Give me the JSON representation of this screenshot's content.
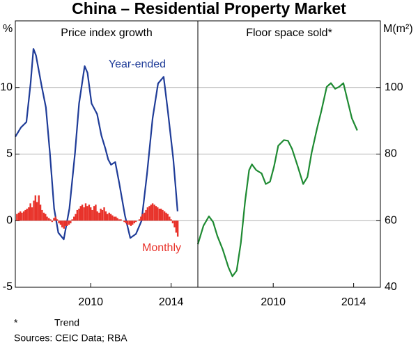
{
  "title": "China – Residential Property Market",
  "footnote": {
    "marker": "*",
    "text": "Trend"
  },
  "sources": "Sources:  CEIC Data; RBA",
  "chart_data": [
    {
      "type": "combo",
      "title": "Price index growth",
      "y_label": "%",
      "xlim": [
        2006.25,
        2015.33
      ],
      "xticks": [
        2010,
        2014
      ],
      "ylim": [
        -5,
        15
      ],
      "yticks": [
        -5,
        0,
        5,
        10
      ],
      "grid": true,
      "axis_side": "left",
      "series": [
        {
          "name": "Year-ended",
          "type": "line",
          "color": "#1f3c98",
          "x": [
            2006.25,
            2006.53,
            2006.8,
            2007.01,
            2007.15,
            2007.28,
            2007.56,
            2007.77,
            2007.97,
            2008.18,
            2008.39,
            2008.66,
            2008.94,
            2009.22,
            2009.42,
            2009.7,
            2009.84,
            2010.04,
            2010.32,
            2010.53,
            2010.73,
            2010.87,
            2011.01,
            2011.22,
            2011.42,
            2011.7,
            2011.97,
            2012.25,
            2012.53,
            2012.8,
            2013.08,
            2013.35,
            2013.63,
            2013.84,
            2014.11,
            2014.32
          ],
          "values": [
            6.3,
            7.0,
            7.4,
            10.3,
            12.9,
            12.4,
            10.1,
            8.5,
            5.1,
            0.9,
            -0.9,
            -1.4,
            0.9,
            5.1,
            8.8,
            11.6,
            11.1,
            8.8,
            8.0,
            6.4,
            5.4,
            4.6,
            4.2,
            4.4,
            2.8,
            0.4,
            -1.3,
            -1.0,
            0.0,
            3.5,
            7.7,
            10.3,
            10.8,
            8.2,
            4.6,
            0.7
          ]
        },
        {
          "name": "Monthly",
          "type": "bar",
          "color": "#e8322a",
          "x": [
            2006.33,
            2006.42,
            2006.5,
            2006.58,
            2006.67,
            2006.75,
            2006.83,
            2006.92,
            2007.0,
            2007.08,
            2007.17,
            2007.25,
            2007.33,
            2007.42,
            2007.5,
            2007.58,
            2007.67,
            2007.75,
            2007.83,
            2007.92,
            2008.0,
            2008.08,
            2008.17,
            2008.25,
            2008.33,
            2008.42,
            2008.5,
            2008.58,
            2008.67,
            2008.75,
            2008.83,
            2008.92,
            2009.0,
            2009.08,
            2009.17,
            2009.25,
            2009.33,
            2009.42,
            2009.5,
            2009.58,
            2009.67,
            2009.75,
            2009.83,
            2009.92,
            2010.0,
            2010.08,
            2010.17,
            2010.25,
            2010.33,
            2010.42,
            2010.5,
            2010.58,
            2010.67,
            2010.75,
            2010.83,
            2010.92,
            2011.0,
            2011.08,
            2011.17,
            2011.25,
            2011.33,
            2011.42,
            2011.5,
            2011.58,
            2011.67,
            2011.75,
            2011.83,
            2011.92,
            2012.0,
            2012.08,
            2012.17,
            2012.25,
            2012.33,
            2012.42,
            2012.5,
            2012.58,
            2012.67,
            2012.75,
            2012.83,
            2012.92,
            2013.0,
            2013.08,
            2013.17,
            2013.25,
            2013.33,
            2013.42,
            2013.5,
            2013.58,
            2013.67,
            2013.75,
            2013.83,
            2013.92,
            2014.0,
            2014.08,
            2014.17,
            2014.25,
            2014.33
          ],
          "values": [
            0.5,
            0.6,
            0.7,
            0.6,
            0.7,
            0.8,
            0.9,
            1.0,
            1.3,
            1.0,
            1.5,
            1.9,
            1.4,
            1.9,
            1.2,
            0.8,
            0.6,
            0.5,
            0.3,
            0.2,
            0.1,
            -0.1,
            0.2,
            0.3,
            0.1,
            -0.2,
            -0.3,
            -0.5,
            -0.6,
            -0.4,
            -0.4,
            -0.3,
            -0.2,
            0.1,
            0.3,
            0.5,
            0.8,
            0.9,
            1.1,
            1.2,
            1.0,
            1.3,
            1.1,
            1.2,
            1.0,
            0.8,
            1.1,
            1.2,
            0.7,
            0.6,
            0.9,
            0.8,
            1.0,
            0.7,
            0.5,
            0.6,
            0.5,
            0.4,
            0.3,
            0.3,
            0.2,
            0.1,
            0.1,
            0.0,
            -0.1,
            -0.2,
            -0.3,
            -0.3,
            -0.4,
            -0.3,
            -0.2,
            -0.1,
            0.0,
            0.1,
            0.3,
            0.5,
            0.6,
            0.8,
            1.0,
            1.1,
            1.2,
            1.3,
            1.2,
            1.1,
            1.0,
            0.9,
            0.9,
            0.8,
            0.7,
            0.6,
            0.5,
            0.3,
            0.1,
            -0.2,
            -0.5,
            -0.9,
            -1.2
          ]
        }
      ]
    },
    {
      "type": "line",
      "title": "Floor space sold*",
      "y_label": "M(m²)",
      "xlim": [
        2006.25,
        2015.33
      ],
      "xticks": [
        2010,
        2014
      ],
      "ylim": [
        40,
        120
      ],
      "yticks": [
        40,
        60,
        80,
        100
      ],
      "grid": true,
      "axis_side": "right",
      "series": [
        {
          "name": "Floor space sold",
          "type": "line",
          "color": "#1e8a32",
          "x": [
            2006.25,
            2006.53,
            2006.8,
            2007.01,
            2007.22,
            2007.49,
            2007.77,
            2007.97,
            2008.18,
            2008.39,
            2008.6,
            2008.8,
            2008.94,
            2009.15,
            2009.42,
            2009.63,
            2009.84,
            2010.04,
            2010.25,
            2010.53,
            2010.73,
            2010.94,
            2011.22,
            2011.49,
            2011.7,
            2011.91,
            2012.18,
            2012.39,
            2012.66,
            2012.87,
            2013.08,
            2013.28,
            2013.49,
            2013.7,
            2013.91,
            2014.18
          ],
          "values": [
            52.9,
            58.5,
            61.3,
            59.6,
            55.4,
            51.3,
            46.0,
            43.3,
            45.0,
            53.3,
            65.8,
            75.2,
            76.9,
            75.2,
            74.2,
            71.0,
            71.7,
            76.3,
            82.5,
            84.2,
            84.0,
            81.5,
            76.3,
            71.0,
            73.1,
            80.4,
            87.7,
            92.9,
            100.2,
            101.3,
            99.6,
            100.2,
            101.3,
            96.0,
            90.8,
            87.1
          ]
        }
      ]
    }
  ]
}
